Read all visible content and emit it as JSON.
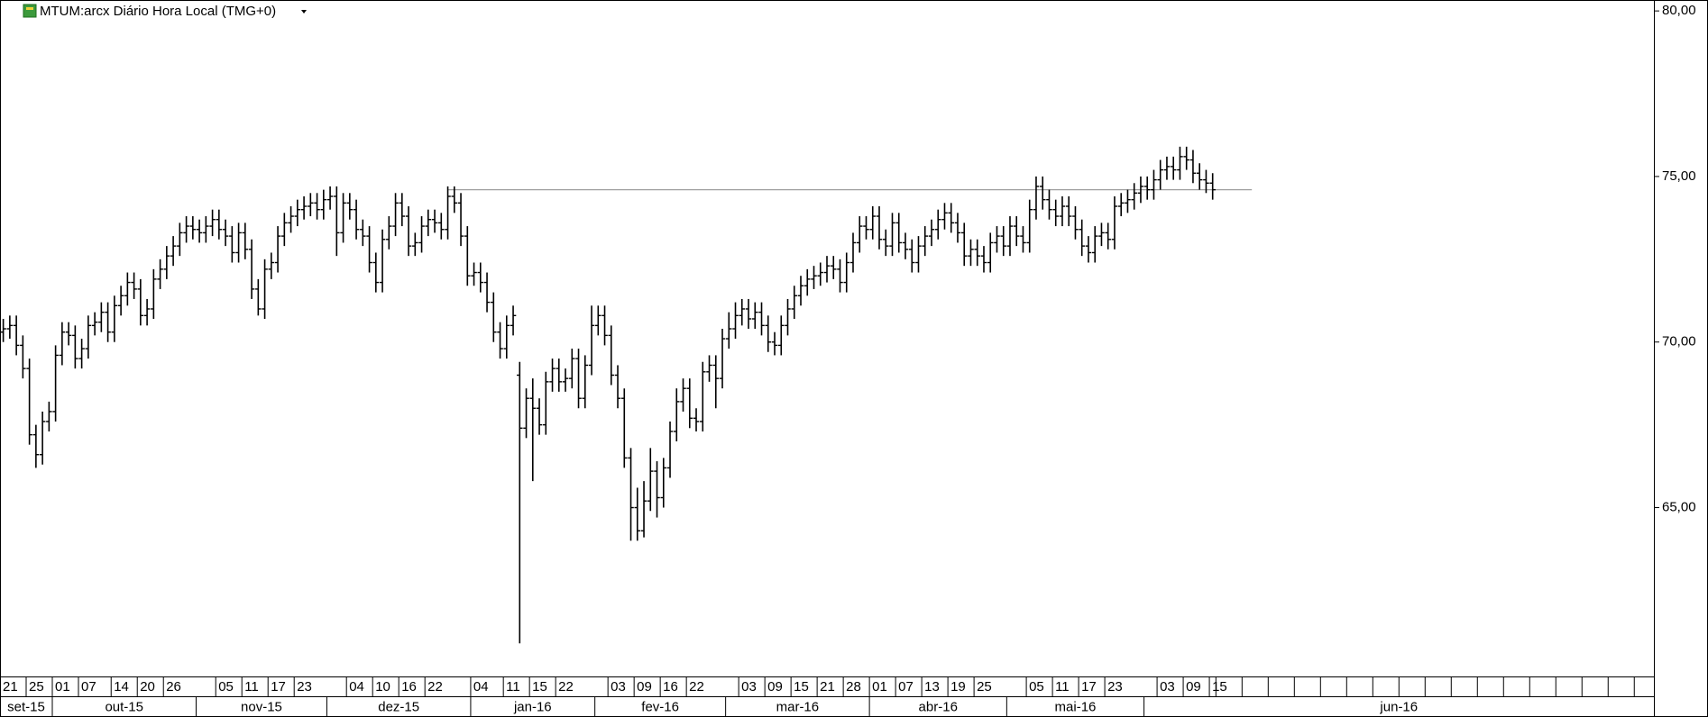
{
  "chart_data": {
    "type": "ohlc",
    "title": "MTUM:arcx Diário Hora Local (TMG+0)",
    "color": "#000000",
    "categories": [
      "21",
      null,
      null,
      null,
      "25",
      null,
      null,
      null,
      "01",
      null,
      null,
      null,
      "07",
      null,
      null,
      null,
      null,
      "14",
      null,
      null,
      null,
      "20",
      null,
      null,
      null,
      "26",
      null,
      null,
      null,
      null,
      null,
      null,
      null,
      "05",
      null,
      null,
      null,
      "11",
      null,
      null,
      null,
      "17",
      null,
      null,
      null,
      "23",
      null,
      null,
      null,
      null,
      null,
      null,
      null,
      "04",
      null,
      null,
      null,
      "10",
      null,
      null,
      null,
      "16",
      null,
      null,
      null,
      "22",
      null,
      null,
      null,
      null,
      null,
      null,
      "04",
      null,
      null,
      null,
      null,
      "11",
      null,
      null,
      null,
      "15",
      null,
      null,
      null,
      "22",
      null,
      null,
      null,
      null,
      null,
      null,
      null,
      "03",
      null,
      null,
      null,
      "09",
      null,
      null,
      null,
      "16",
      null,
      null,
      null,
      "22",
      null,
      null,
      null,
      null,
      null,
      null,
      null,
      "03",
      null,
      null,
      null,
      "09",
      null,
      null,
      null,
      "15",
      null,
      null,
      null,
      "21",
      null,
      null,
      null,
      "28",
      null,
      null,
      null,
      "01",
      null,
      null,
      null,
      "07",
      null,
      null,
      null,
      "13",
      null,
      null,
      null,
      "19",
      null,
      null,
      null,
      "25",
      null,
      null,
      null,
      null,
      null,
      null,
      null,
      "05",
      null,
      null,
      null,
      "11",
      null,
      null,
      null,
      "17",
      null,
      null,
      null,
      "23",
      null,
      null,
      null,
      null,
      null,
      null,
      null,
      "03",
      null,
      null,
      null,
      "09",
      null,
      null,
      null,
      "15"
    ],
    "months": [
      {
        "label": "set-15",
        "start": 0
      },
      {
        "label": "out-15",
        "start": 8
      },
      {
        "label": "nov-15",
        "start": 30
      },
      {
        "label": "dez-15",
        "start": 50
      },
      {
        "label": "jan-16",
        "start": 72
      },
      {
        "label": "fev-16",
        "start": 91
      },
      {
        "label": "mar-16",
        "start": 111
      },
      {
        "label": "abr-16",
        "start": 133
      },
      {
        "label": "mai-16",
        "start": 154
      },
      {
        "label": "jun-16",
        "start": 175
      }
    ],
    "open": [
      70.3,
      70.4,
      70.5,
      69.9,
      69.2,
      67.2,
      66.6,
      67.6,
      67.9,
      69.6,
      70.3,
      70.2,
      69.5,
      69.8,
      70.5,
      70.6,
      70.9,
      70.3,
      71.1,
      71.4,
      71.8,
      71.6,
      70.8,
      71.0,
      71.9,
      72.2,
      72.6,
      72.9,
      73.3,
      73.5,
      73.4,
      73.3,
      73.5,
      73.7,
      73.4,
      73.2,
      72.7,
      73.3,
      72.8,
      71.6,
      71.0,
      72.2,
      72.4,
      73.2,
      73.6,
      73.8,
      74.0,
      74.1,
      74.2,
      74.0,
      74.3,
      74.4,
      73.3,
      74.2,
      74.0,
      73.4,
      73.2,
      72.4,
      71.8,
      73.1,
      73.5,
      74.2,
      73.8,
      72.9,
      73.0,
      73.5,
      73.7,
      73.6,
      73.4,
      74.4,
      74.2,
      73.2,
      72.0,
      72.1,
      71.8,
      71.2,
      70.3,
      69.8,
      70.5,
      69.0,
      67.4,
      68.3,
      68.0,
      67.5,
      68.8,
      69.2,
      68.8,
      68.9,
      69.5,
      68.3,
      69.3,
      70.5,
      70.8,
      70.2,
      69.0,
      68.3,
      66.5,
      65.0,
      64.3,
      65.2,
      66.1,
      65.3,
      66.2,
      67.3,
      68.2,
      68.6,
      67.7,
      67.6,
      69.1,
      69.3,
      68.9,
      70.1,
      70.4,
      70.8,
      71.0,
      70.7,
      70.9,
      70.5,
      70.0,
      69.9,
      70.5,
      71.0,
      71.4,
      71.7,
      71.9,
      72.0,
      72.1,
      72.3,
      72.2,
      71.8,
      72.4,
      73.0,
      73.5,
      73.4,
      73.8,
      73.1,
      72.9,
      73.6,
      73.0,
      72.8,
      72.4,
      72.9,
      73.2,
      73.4,
      73.7,
      73.9,
      73.6,
      73.3,
      72.6,
      72.8,
      72.6,
      72.4,
      73.0,
      73.2,
      72.9,
      73.5,
      73.2,
      73.0,
      74.0,
      74.7,
      74.3,
      74.0,
      73.8,
      74.1,
      73.8,
      73.4,
      72.9,
      72.7,
      73.2,
      73.3,
      73.1,
      74.1,
      74.2,
      74.3,
      74.5,
      74.7,
      74.6,
      74.9,
      75.2,
      75.3,
      75.2,
      75.6,
      75.5,
      75.1,
      74.9,
      74.8
    ],
    "high": [
      70.7,
      70.8,
      70.8,
      70.2,
      69.5,
      67.5,
      67.9,
      68.2,
      69.9,
      70.6,
      70.6,
      70.5,
      70.1,
      70.8,
      70.9,
      71.2,
      71.2,
      71.4,
      71.7,
      72.1,
      72.1,
      71.9,
      71.3,
      72.2,
      72.5,
      72.9,
      73.2,
      73.6,
      73.8,
      73.8,
      73.7,
      73.8,
      74.0,
      74.0,
      73.7,
      73.5,
      73.6,
      73.6,
      73.1,
      71.9,
      72.5,
      72.7,
      73.5,
      73.9,
      74.1,
      74.3,
      74.4,
      74.5,
      74.5,
      74.6,
      74.7,
      74.7,
      74.5,
      74.5,
      74.3,
      73.7,
      73.5,
      72.7,
      73.4,
      73.8,
      74.5,
      74.5,
      74.1,
      73.3,
      73.8,
      74.0,
      74.0,
      73.9,
      74.7,
      74.7,
      74.5,
      73.5,
      72.4,
      72.4,
      72.1,
      71.5,
      70.6,
      70.8,
      71.1,
      69.4,
      68.6,
      68.9,
      68.3,
      69.1,
      69.5,
      69.5,
      69.2,
      69.8,
      69.8,
      69.6,
      71.1,
      71.1,
      71.1,
      70.5,
      69.3,
      68.6,
      66.8,
      65.6,
      65.8,
      66.8,
      66.4,
      66.5,
      67.6,
      68.6,
      68.9,
      68.9,
      68.0,
      69.4,
      69.6,
      69.6,
      70.4,
      70.9,
      71.2,
      71.3,
      71.3,
      71.2,
      71.2,
      70.8,
      70.3,
      70.8,
      71.3,
      71.7,
      72.0,
      72.2,
      72.3,
      72.4,
      72.6,
      72.6,
      72.5,
      72.7,
      73.3,
      73.8,
      73.8,
      74.1,
      74.1,
      73.4,
      73.9,
      73.9,
      73.3,
      73.1,
      73.2,
      73.5,
      73.7,
      74.0,
      74.2,
      74.2,
      73.9,
      73.6,
      73.1,
      73.1,
      72.9,
      73.3,
      73.5,
      73.5,
      73.8,
      73.8,
      73.5,
      74.3,
      75.0,
      75.0,
      74.6,
      74.3,
      74.4,
      74.4,
      74.1,
      73.7,
      73.2,
      73.5,
      73.6,
      73.6,
      74.4,
      74.5,
      74.6,
      74.8,
      75.0,
      75.0,
      75.2,
      75.5,
      75.6,
      75.6,
      75.9,
      75.9,
      75.8,
      75.4,
      75.2,
      75.1
    ],
    "low": [
      70.0,
      70.1,
      69.6,
      68.9,
      66.9,
      66.2,
      66.3,
      67.3,
      67.6,
      69.3,
      69.9,
      69.2,
      69.2,
      69.5,
      70.2,
      70.3,
      70.0,
      70.0,
      70.8,
      71.1,
      71.3,
      70.5,
      70.5,
      70.7,
      71.6,
      71.9,
      72.3,
      72.6,
      73.0,
      73.1,
      73.0,
      73.0,
      73.2,
      73.1,
      72.9,
      72.4,
      72.4,
      72.5,
      71.3,
      70.8,
      70.7,
      71.9,
      72.1,
      72.9,
      73.3,
      73.5,
      73.7,
      73.8,
      73.7,
      73.7,
      74.0,
      72.6,
      73.0,
      73.7,
      73.1,
      72.9,
      72.1,
      71.5,
      71.5,
      72.8,
      73.2,
      73.5,
      72.6,
      72.6,
      72.7,
      73.2,
      73.3,
      73.1,
      73.1,
      73.9,
      72.9,
      71.7,
      71.7,
      71.5,
      70.9,
      70.0,
      69.5,
      69.5,
      70.2,
      60.9,
      67.1,
      65.8,
      67.2,
      67.2,
      68.5,
      68.5,
      68.5,
      68.6,
      68.0,
      68.0,
      69.0,
      70.2,
      69.9,
      68.7,
      68.0,
      66.2,
      64.0,
      64.0,
      64.1,
      64.9,
      64.7,
      65.0,
      65.9,
      67.0,
      67.9,
      67.4,
      67.3,
      67.3,
      68.8,
      68.0,
      68.6,
      69.8,
      70.1,
      70.5,
      70.4,
      70.4,
      70.2,
      69.7,
      69.6,
      69.6,
      70.2,
      70.7,
      71.1,
      71.4,
      71.6,
      71.7,
      71.8,
      71.9,
      71.5,
      71.5,
      72.1,
      72.7,
      73.1,
      73.1,
      72.8,
      72.6,
      72.6,
      72.7,
      72.5,
      72.1,
      72.1,
      72.6,
      72.9,
      73.1,
      73.4,
      73.3,
      73.0,
      72.3,
      72.3,
      72.3,
      72.1,
      72.1,
      72.7,
      72.6,
      72.6,
      72.9,
      72.7,
      72.7,
      73.7,
      74.0,
      73.7,
      73.5,
      73.5,
      73.5,
      73.1,
      72.6,
      72.4,
      72.4,
      72.9,
      72.8,
      72.8,
      73.8,
      73.9,
      74.0,
      74.2,
      74.3,
      74.3,
      74.6,
      74.9,
      74.9,
      74.9,
      75.2,
      74.8,
      74.6,
      74.5,
      74.3
    ],
    "close": [
      70.4,
      70.5,
      69.9,
      69.2,
      67.2,
      66.6,
      67.6,
      67.9,
      69.6,
      70.3,
      70.2,
      69.5,
      69.8,
      70.5,
      70.6,
      70.9,
      70.3,
      71.1,
      71.4,
      71.8,
      71.6,
      70.8,
      71.0,
      71.9,
      72.2,
      72.6,
      72.9,
      73.3,
      73.5,
      73.4,
      73.3,
      73.5,
      73.7,
      73.4,
      73.2,
      72.7,
      73.3,
      72.8,
      71.6,
      71.0,
      72.2,
      72.4,
      73.2,
      73.6,
      73.8,
      74.0,
      74.1,
      74.2,
      74.0,
      74.3,
      74.4,
      73.3,
      74.2,
      74.0,
      73.4,
      73.2,
      72.4,
      71.8,
      73.1,
      73.5,
      74.2,
      73.8,
      72.9,
      73.0,
      73.5,
      73.7,
      73.6,
      73.4,
      74.4,
      74.2,
      73.2,
      72.0,
      72.1,
      71.8,
      71.2,
      70.3,
      69.8,
      70.5,
      70.8,
      67.4,
      68.3,
      68.0,
      67.5,
      68.8,
      69.2,
      68.8,
      68.9,
      69.5,
      68.3,
      69.3,
      70.5,
      70.8,
      70.2,
      69.0,
      68.3,
      66.5,
      65.0,
      64.3,
      65.2,
      66.1,
      65.3,
      66.2,
      67.3,
      68.2,
      68.6,
      67.7,
      67.6,
      69.1,
      69.3,
      68.9,
      70.1,
      70.4,
      70.8,
      71.0,
      70.7,
      70.9,
      70.5,
      70.0,
      69.9,
      70.5,
      71.0,
      71.4,
      71.7,
      71.9,
      72.0,
      72.1,
      72.3,
      72.2,
      71.8,
      72.4,
      73.0,
      73.5,
      73.4,
      73.8,
      73.1,
      72.9,
      73.6,
      73.0,
      72.8,
      72.4,
      72.9,
      73.2,
      73.4,
      73.7,
      73.9,
      73.6,
      73.3,
      72.6,
      72.8,
      72.6,
      72.4,
      73.0,
      73.2,
      72.9,
      73.5,
      73.2,
      73.0,
      74.0,
      74.7,
      74.3,
      74.0,
      73.8,
      74.1,
      73.8,
      73.4,
      72.9,
      72.7,
      73.2,
      73.3,
      73.1,
      74.1,
      74.2,
      74.3,
      74.5,
      74.7,
      74.6,
      74.9,
      75.2,
      75.3,
      75.2,
      75.6,
      75.5,
      75.1,
      74.9,
      74.8,
      74.6
    ],
    "xlim": [
      -0.5,
      252.5
    ],
    "ylim": [
      59.9,
      80.33
    ],
    "yticks": [
      {
        "value": 65,
        "label": "65,00"
      },
      {
        "value": 70,
        "label": "70,00"
      },
      {
        "value": 75,
        "label": "75,00"
      },
      {
        "value": 80,
        "label": "80,00"
      }
    ],
    "trendline": {
      "value": 74.6,
      "from": 68,
      "to": 191,
      "color": "#a0a0a0"
    },
    "grid": false
  }
}
